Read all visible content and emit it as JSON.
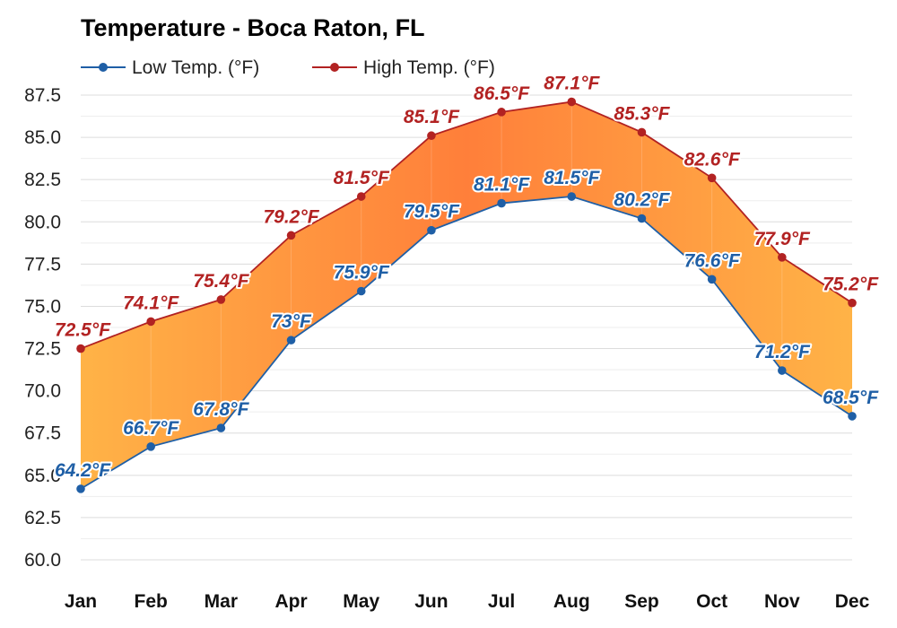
{
  "chart_data": {
    "type": "line",
    "title": "Temperature - Boca Raton, FL",
    "categories": [
      "Jan",
      "Feb",
      "Mar",
      "Apr",
      "May",
      "Jun",
      "Jul",
      "Aug",
      "Sep",
      "Oct",
      "Nov",
      "Dec"
    ],
    "series": [
      {
        "name": "Low Temp. (°F)",
        "color": "#1f5fa6",
        "values": [
          64.2,
          66.7,
          67.8,
          73,
          75.9,
          79.5,
          81.1,
          81.5,
          80.2,
          76.6,
          71.2,
          68.5
        ],
        "labels": [
          "64.2°F",
          "66.7°F",
          "67.8°F",
          "73°F",
          "75.9°F",
          "79.5°F",
          "81.1°F",
          "81.5°F",
          "80.2°F",
          "76.6°F",
          "71.2°F",
          "68.5°F"
        ]
      },
      {
        "name": "High Temp. (°F)",
        "color": "#b22222",
        "values": [
          72.5,
          74.1,
          75.4,
          79.2,
          81.5,
          85.1,
          86.5,
          87.1,
          85.3,
          82.6,
          77.9,
          75.2
        ],
        "labels": [
          "72.5°F",
          "74.1°F",
          "75.4°F",
          "79.2°F",
          "81.5°F",
          "85.1°F",
          "86.5°F",
          "87.1°F",
          "85.3°F",
          "82.6°F",
          "77.9°F",
          "75.2°F"
        ]
      }
    ],
    "ylim": [
      60,
      87.5
    ],
    "yticks": [
      "60.0",
      "62.5",
      "65.0",
      "67.5",
      "70.0",
      "72.5",
      "75.0",
      "77.5",
      "80.0",
      "82.5",
      "85.0",
      "87.5"
    ],
    "grid": true,
    "legend_position": "top-left",
    "fill_between": true,
    "fill_colors": {
      "cool": "#ffb347",
      "warm": "#ff7f3a"
    }
  }
}
